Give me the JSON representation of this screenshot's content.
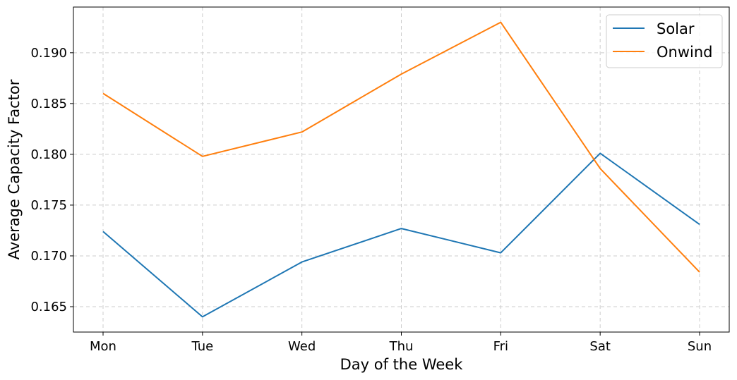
{
  "chart_data": {
    "type": "line",
    "title": "",
    "xlabel": "Day of the Week",
    "ylabel": "Average Capacity Factor",
    "categories": [
      "Mon",
      "Tue",
      "Wed",
      "Thu",
      "Fri",
      "Sat",
      "Sun"
    ],
    "ylim": [
      0.1625,
      0.1945
    ],
    "yticks": [
      0.165,
      0.17,
      0.175,
      0.18,
      0.185,
      0.19
    ],
    "ytick_labels": [
      "0.165",
      "0.170",
      "0.175",
      "0.180",
      "0.185",
      "0.190"
    ],
    "grid": true,
    "legend_position": "top-right",
    "series": [
      {
        "name": "Solar",
        "color": "#1f77b4",
        "values": [
          0.1724,
          0.164,
          0.1694,
          0.1727,
          0.1703,
          0.1801,
          0.1731
        ]
      },
      {
        "name": "Onwind",
        "color": "#ff7f0e",
        "values": [
          0.186,
          0.1798,
          0.1822,
          0.1879,
          0.193,
          0.1786,
          0.1684
        ]
      }
    ]
  }
}
